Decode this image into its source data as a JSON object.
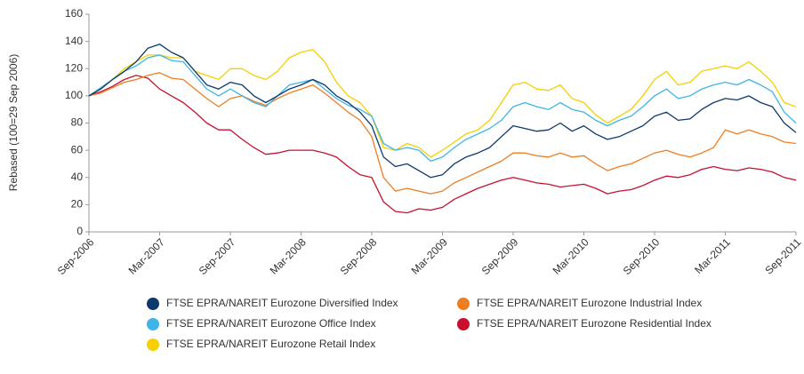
{
  "chart_data": {
    "type": "line",
    "y_label": "Rebased (100=29 Sep 2006)",
    "categories": [
      "Sep-2006",
      null,
      null,
      null,
      null,
      null,
      "Mar-2007",
      null,
      null,
      null,
      null,
      null,
      "Sep-2007",
      null,
      null,
      null,
      null,
      null,
      "Mar-2008",
      null,
      null,
      null,
      null,
      null,
      "Sep-2008",
      null,
      null,
      null,
      null,
      null,
      "Mar-2009",
      null,
      null,
      null,
      null,
      null,
      "Sep-2009",
      null,
      null,
      null,
      null,
      null,
      "Mar-2010",
      null,
      null,
      null,
      null,
      null,
      "Sep-2010",
      null,
      null,
      null,
      null,
      null,
      "Mar-2011",
      null,
      null,
      null,
      null,
      null,
      "Sep-2011"
    ],
    "ylim": [
      0,
      160
    ],
    "yticks": [
      0,
      20,
      40,
      60,
      80,
      100,
      120,
      140,
      160
    ],
    "grid": false,
    "legend": "bottom",
    "series": [
      {
        "name": "FTSE EPRA/NAREIT Eurozone Diversified Index",
        "color": "#0d3a6b",
        "values": [
          100,
          105,
          112,
          118,
          125,
          135,
          138,
          132,
          128,
          118,
          108,
          105,
          110,
          108,
          100,
          95,
          100,
          105,
          108,
          112,
          108,
          100,
          95,
          88,
          78,
          55,
          48,
          50,
          45,
          40,
          42,
          50,
          55,
          58,
          62,
          70,
          78,
          76,
          74,
          75,
          80,
          74,
          78,
          72,
          68,
          70,
          74,
          78,
          85,
          88,
          82,
          83,
          90,
          95,
          98,
          97,
          100,
          95,
          92,
          80,
          73
        ]
      },
      {
        "name": "FTSE EPRA/NAREIT Eurozone Office Index",
        "color": "#3fb5e5",
        "values": [
          100,
          106,
          112,
          118,
          122,
          128,
          130,
          126,
          125,
          115,
          105,
          100,
          105,
          100,
          95,
          92,
          100,
          108,
          110,
          112,
          105,
          98,
          93,
          90,
          85,
          65,
          60,
          62,
          60,
          52,
          55,
          62,
          68,
          72,
          76,
          82,
          92,
          95,
          92,
          90,
          95,
          90,
          88,
          82,
          78,
          82,
          85,
          92,
          100,
          105,
          98,
          100,
          105,
          108,
          110,
          108,
          112,
          108,
          103,
          88,
          80
        ]
      },
      {
        "name": "FTSE EPRA/NAREIT Eurozone Retail Index",
        "color": "#f5d000",
        "values": [
          100,
          106,
          112,
          120,
          125,
          130,
          130,
          128,
          128,
          118,
          115,
          112,
          120,
          120,
          115,
          112,
          118,
          128,
          132,
          134,
          125,
          110,
          100,
          95,
          85,
          62,
          60,
          65,
          62,
          55,
          60,
          66,
          72,
          75,
          82,
          95,
          108,
          110,
          105,
          104,
          108,
          98,
          95,
          86,
          80,
          85,
          90,
          100,
          112,
          118,
          108,
          110,
          118,
          120,
          122,
          120,
          125,
          118,
          110,
          95,
          92
        ]
      },
      {
        "name": "FTSE EPRA/NAREIT Eurozone Industrial Index",
        "color": "#ef7d22",
        "values": [
          100,
          102,
          106,
          110,
          112,
          115,
          117,
          113,
          112,
          105,
          98,
          92,
          98,
          100,
          96,
          93,
          98,
          102,
          105,
          108,
          102,
          95,
          88,
          82,
          70,
          40,
          30,
          32,
          30,
          28,
          30,
          36,
          40,
          44,
          48,
          52,
          58,
          58,
          56,
          55,
          58,
          55,
          56,
          50,
          45,
          48,
          50,
          54,
          58,
          60,
          57,
          55,
          58,
          62,
          75,
          72,
          75,
          72,
          70,
          66,
          65
        ]
      },
      {
        "name": "FTSE EPRA/NAREIT Eurozone Residential Index",
        "color": "#c8102e",
        "values": [
          100,
          103,
          107,
          112,
          115,
          113,
          105,
          100,
          95,
          88,
          80,
          75,
          75,
          68,
          62,
          57,
          58,
          60,
          60,
          60,
          58,
          55,
          48,
          42,
          40,
          22,
          15,
          14,
          17,
          16,
          18,
          24,
          28,
          32,
          35,
          38,
          40,
          38,
          36,
          35,
          33,
          34,
          35,
          32,
          28,
          30,
          31,
          34,
          38,
          41,
          40,
          42,
          46,
          48,
          46,
          45,
          47,
          46,
          44,
          40,
          38
        ]
      }
    ]
  }
}
